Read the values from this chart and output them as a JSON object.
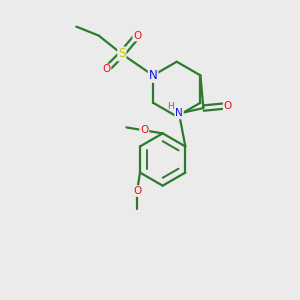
{
  "background_color": "#ebebeb",
  "bond_color": "#2d7a2d",
  "atom_colors": {
    "N": "#1010ee",
    "O": "#ee1010",
    "S": "#cccc00",
    "H": "#707070",
    "C": "#2d7a2d"
  },
  "figsize": [
    3.0,
    3.0
  ],
  "dpi": 100
}
